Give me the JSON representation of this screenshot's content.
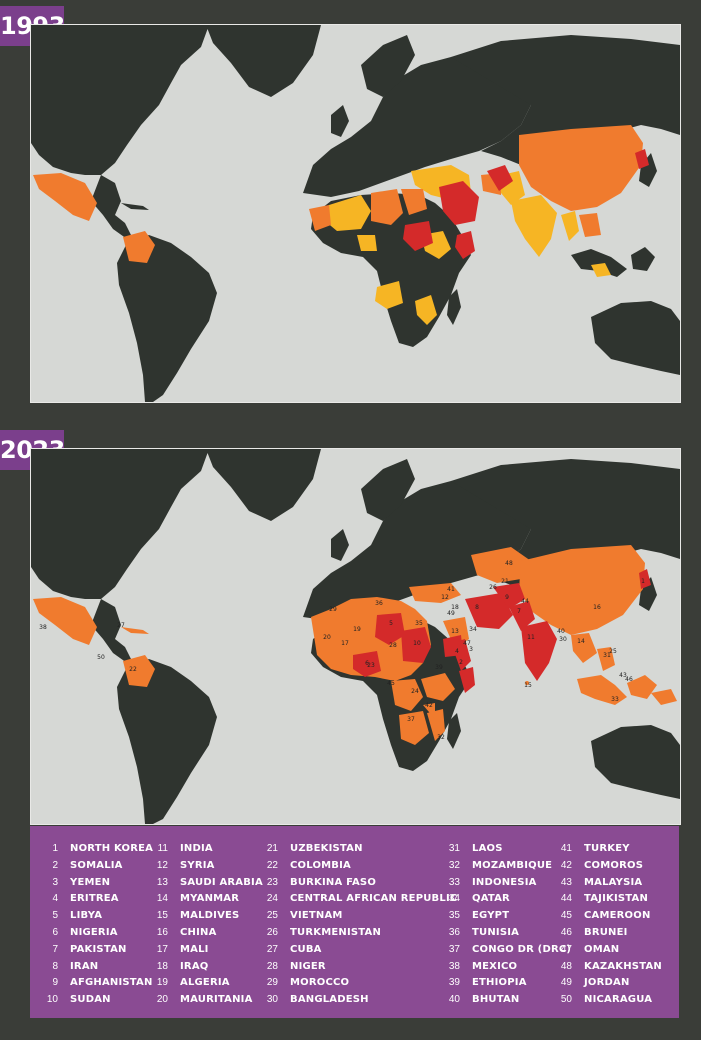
{
  "panels": [
    {
      "year": "1993"
    },
    {
      "year": "2023"
    }
  ],
  "colors": {
    "background": "#3a3d38",
    "ocean": "#d6d8d5",
    "land": "#2f342f",
    "extreme": "#d42a2a",
    "very_high": "#f07b2e",
    "high": "#f6b524",
    "legend_bg": "#8a4b93",
    "tag_bg": "#7b3f8c"
  },
  "map_labels_2023": [
    "1",
    "2",
    "3",
    "4",
    "5",
    "6",
    "7",
    "8",
    "9",
    "10",
    "11",
    "12",
    "13",
    "14",
    "15",
    "16",
    "17",
    "18",
    "19",
    "20",
    "21",
    "22",
    "23",
    "24",
    "25",
    "26",
    "27",
    "28",
    "29",
    "30",
    "31",
    "32",
    "33",
    "34",
    "35",
    "36",
    "37",
    "38",
    "39",
    "40",
    "41",
    "42",
    "43",
    "44",
    "45",
    "46",
    "47",
    "48",
    "49",
    "50"
  ],
  "legend": [
    {
      "rank": "1",
      "name": "NORTH KOREA"
    },
    {
      "rank": "2",
      "name": "SOMALIA"
    },
    {
      "rank": "3",
      "name": "YEMEN"
    },
    {
      "rank": "4",
      "name": "ERITREA"
    },
    {
      "rank": "5",
      "name": "LIBYA"
    },
    {
      "rank": "6",
      "name": "NIGERIA"
    },
    {
      "rank": "7",
      "name": "PAKISTAN"
    },
    {
      "rank": "8",
      "name": "IRAN"
    },
    {
      "rank": "9",
      "name": "AFGHANISTAN"
    },
    {
      "rank": "10",
      "name": "SUDAN"
    },
    {
      "rank": "11",
      "name": "INDIA"
    },
    {
      "rank": "12",
      "name": "SYRIA"
    },
    {
      "rank": "13",
      "name": "SAUDI ARABIA"
    },
    {
      "rank": "14",
      "name": "MYANMAR"
    },
    {
      "rank": "15",
      "name": "MALDIVES"
    },
    {
      "rank": "16",
      "name": "CHINA"
    },
    {
      "rank": "17",
      "name": "MALI"
    },
    {
      "rank": "18",
      "name": "IRAQ"
    },
    {
      "rank": "19",
      "name": "ALGERIA"
    },
    {
      "rank": "20",
      "name": "MAURITANIA"
    },
    {
      "rank": "21",
      "name": "UZBEKISTAN"
    },
    {
      "rank": "22",
      "name": "COLOMBIA"
    },
    {
      "rank": "23",
      "name": "BURKINA FASO"
    },
    {
      "rank": "24",
      "name": "CENTRAL AFRICAN REPUBLIC"
    },
    {
      "rank": "25",
      "name": "VIETNAM"
    },
    {
      "rank": "26",
      "name": "TURKMENISTAN"
    },
    {
      "rank": "27",
      "name": "CUBA"
    },
    {
      "rank": "28",
      "name": "NIGER"
    },
    {
      "rank": "29",
      "name": "MOROCCO"
    },
    {
      "rank": "30",
      "name": "BANGLADESH"
    },
    {
      "rank": "31",
      "name": "LAOS"
    },
    {
      "rank": "32",
      "name": "MOZAMBIQUE"
    },
    {
      "rank": "33",
      "name": "INDONESIA"
    },
    {
      "rank": "34",
      "name": "QATAR"
    },
    {
      "rank": "35",
      "name": "EGYPT"
    },
    {
      "rank": "36",
      "name": "TUNISIA"
    },
    {
      "rank": "37",
      "name": "CONGO DR (DRC)"
    },
    {
      "rank": "38",
      "name": "MEXICO"
    },
    {
      "rank": "39",
      "name": "ETHIOPIA"
    },
    {
      "rank": "40",
      "name": "BHUTAN"
    },
    {
      "rank": "41",
      "name": "TURKEY"
    },
    {
      "rank": "42",
      "name": "COMOROS"
    },
    {
      "rank": "43",
      "name": "MALAYSIA"
    },
    {
      "rank": "44",
      "name": "TAJIKISTAN"
    },
    {
      "rank": "45",
      "name": "CAMEROON"
    },
    {
      "rank": "46",
      "name": "BRUNEI"
    },
    {
      "rank": "47",
      "name": "OMAN"
    },
    {
      "rank": "48",
      "name": "KAZAKHSTAN"
    },
    {
      "rank": "49",
      "name": "JORDAN"
    },
    {
      "rank": "50",
      "name": "NICARAGUA"
    }
  ]
}
